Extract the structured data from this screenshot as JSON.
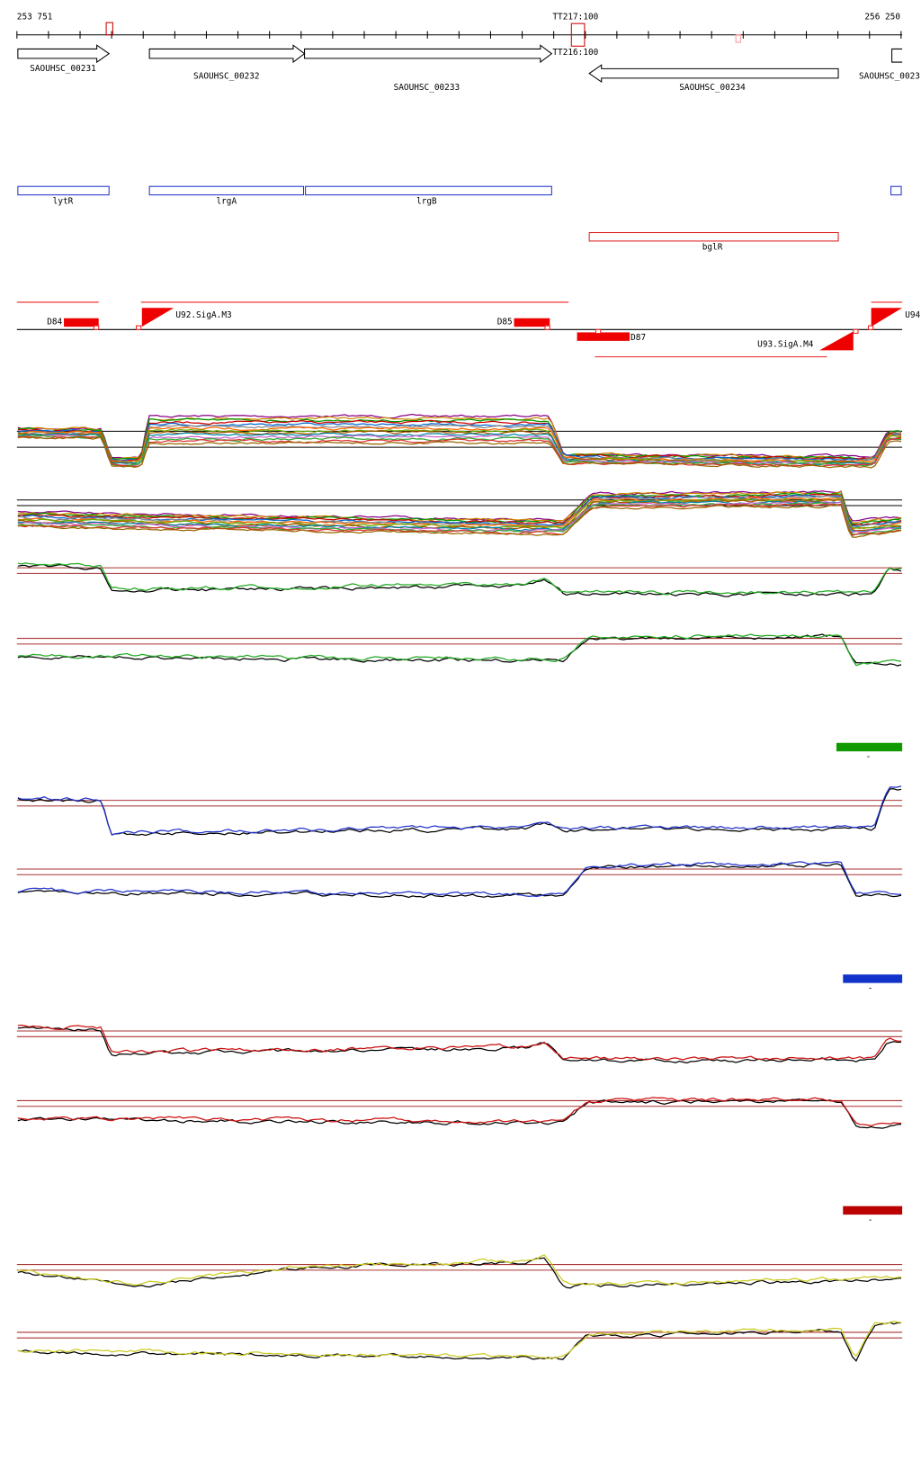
{
  "ruler": {
    "start": "253 751",
    "end": "256 250",
    "markers": [
      "TT217:100",
      "TT216:100"
    ]
  },
  "genes": [
    "SAOUHSC_00231",
    "SAOUHSC_00232",
    "SAOUHSC_00233",
    "SAOUHSC_00234",
    "SAOUHSC_0023"
  ],
  "operons": [
    "lytR",
    "lrgA",
    "lrgB",
    "bglR"
  ],
  "regulation": [
    "D84",
    "U92.SigA.M3",
    "D85",
    "D87",
    "U93.SigA.M4",
    "U94"
  ],
  "legend": [
    "-",
    "-",
    "-"
  ]
}
